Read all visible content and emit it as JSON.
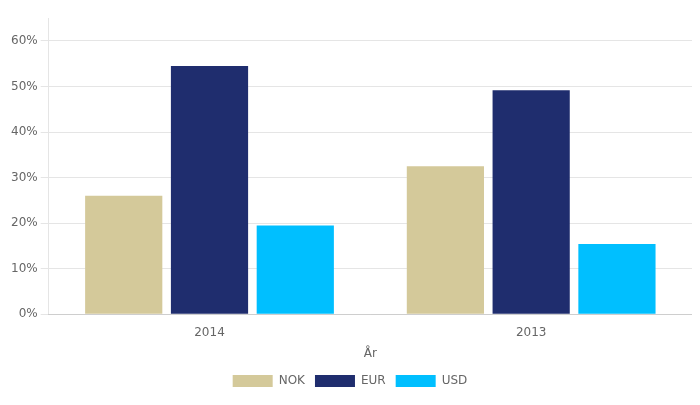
{
  "chart_data": {
    "type": "bar",
    "categories": [
      "2014",
      "2013"
    ],
    "series": [
      {
        "name": "NOK",
        "values": [
          0.26,
          0.325
        ],
        "color": "#d4c99a"
      },
      {
        "name": "EUR",
        "values": [
          0.545,
          0.492
        ],
        "color": "#1f2d6e"
      },
      {
        "name": "USD",
        "values": [
          0.195,
          0.154
        ],
        "color": "#00bfff"
      }
    ],
    "xlabel": "År",
    "ylim": [
      0,
      0.65
    ],
    "yticks": [
      {
        "value": 0.0,
        "label": "0%"
      },
      {
        "value": 0.1,
        "label": "10%"
      },
      {
        "value": 0.2,
        "label": "20%"
      },
      {
        "value": 0.3,
        "label": "30%"
      },
      {
        "value": 0.4,
        "label": "40%"
      },
      {
        "value": 0.5,
        "label": "50%"
      },
      {
        "value": 0.6,
        "label": "60%"
      }
    ],
    "grid": true,
    "legend": "bottom"
  }
}
